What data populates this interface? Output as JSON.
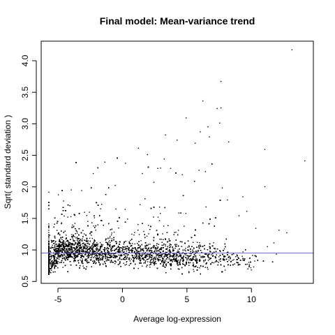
{
  "chart_data": {
    "type": "scatter",
    "title": "Final model: Mean-variance trend",
    "xlabel": "Average log-expression",
    "ylabel": "Sqrt( standard deviation )",
    "xlim": [
      -6.3,
      14.8
    ],
    "ylim": [
      0.47,
      4.31
    ],
    "xticks": [
      -5,
      0,
      5,
      10
    ],
    "yticks": [
      0.5,
      1.0,
      1.5,
      2.0,
      2.5,
      3.0,
      3.5,
      4.0
    ],
    "xtick_labels": [
      "-5",
      "0",
      "5",
      "10"
    ],
    "ytick_labels": [
      "0.5",
      "1.0",
      "1.5",
      "2.0",
      "2.5",
      "3.0",
      "3.5",
      "4.0"
    ],
    "trend_line": {
      "y": 0.95,
      "color": "#6666cc"
    },
    "point_color": "#000000",
    "outliers": [
      {
        "x": 13.1,
        "y": 4.18
      },
      {
        "x": 7.6,
        "y": 3.68
      },
      {
        "x": 6.2,
        "y": 3.37
      },
      {
        "x": 7.3,
        "y": 3.25
      },
      {
        "x": 7.6,
        "y": 3.26
      },
      {
        "x": 4.9,
        "y": 3.1
      },
      {
        "x": 6.6,
        "y": 2.96
      },
      {
        "x": 7.5,
        "y": 3.02
      },
      {
        "x": 6.0,
        "y": 2.88
      },
      {
        "x": 3.3,
        "y": 2.83
      },
      {
        "x": 4.2,
        "y": 2.75
      },
      {
        "x": 5.6,
        "y": 2.7
      },
      {
        "x": 6.7,
        "y": 2.8
      },
      {
        "x": 8.2,
        "y": 2.72
      },
      {
        "x": 11.0,
        "y": 2.6
      },
      {
        "x": 1.2,
        "y": 2.62
      },
      {
        "x": 1.9,
        "y": 2.52
      },
      {
        "x": 3.2,
        "y": 2.45
      },
      {
        "x": 2.7,
        "y": 2.3
      },
      {
        "x": 3.7,
        "y": 2.3
      },
      {
        "x": 5.9,
        "y": 2.27
      },
      {
        "x": 14.1,
        "y": 2.42
      },
      {
        "x": 0.2,
        "y": 2.38
      },
      {
        "x": -1.4,
        "y": 2.4
      },
      {
        "x": -2.3,
        "y": 2.22
      },
      {
        "x": 1.5,
        "y": 2.22
      },
      {
        "x": 4.6,
        "y": 2.2
      },
      {
        "x": 6.4,
        "y": 2.25
      },
      {
        "x": 11.0,
        "y": 2.01
      },
      {
        "x": 7.7,
        "y": 1.99
      },
      {
        "x": 9.3,
        "y": 1.85
      },
      {
        "x": 8.1,
        "y": 1.8
      },
      {
        "x": 12.1,
        "y": 1.32
      },
      {
        "x": 12.7,
        "y": 1.28
      },
      {
        "x": 11.7,
        "y": 1.12
      },
      {
        "x": 11.2,
        "y": 1.06
      },
      {
        "x": 11.9,
        "y": 0.94
      },
      {
        "x": -0.6,
        "y": 2.03
      },
      {
        "x": -3.2,
        "y": 1.95
      },
      {
        "x": 2.4,
        "y": 2.08
      },
      {
        "x": 9.6,
        "y": 1.62
      },
      {
        "x": 10.3,
        "y": 1.35
      },
      {
        "x": 9.0,
        "y": 1.55
      }
    ],
    "bulk": {
      "n_points": 9000,
      "x_range": [
        -5.6,
        11.5
      ],
      "approx_center": 0.97
    }
  }
}
